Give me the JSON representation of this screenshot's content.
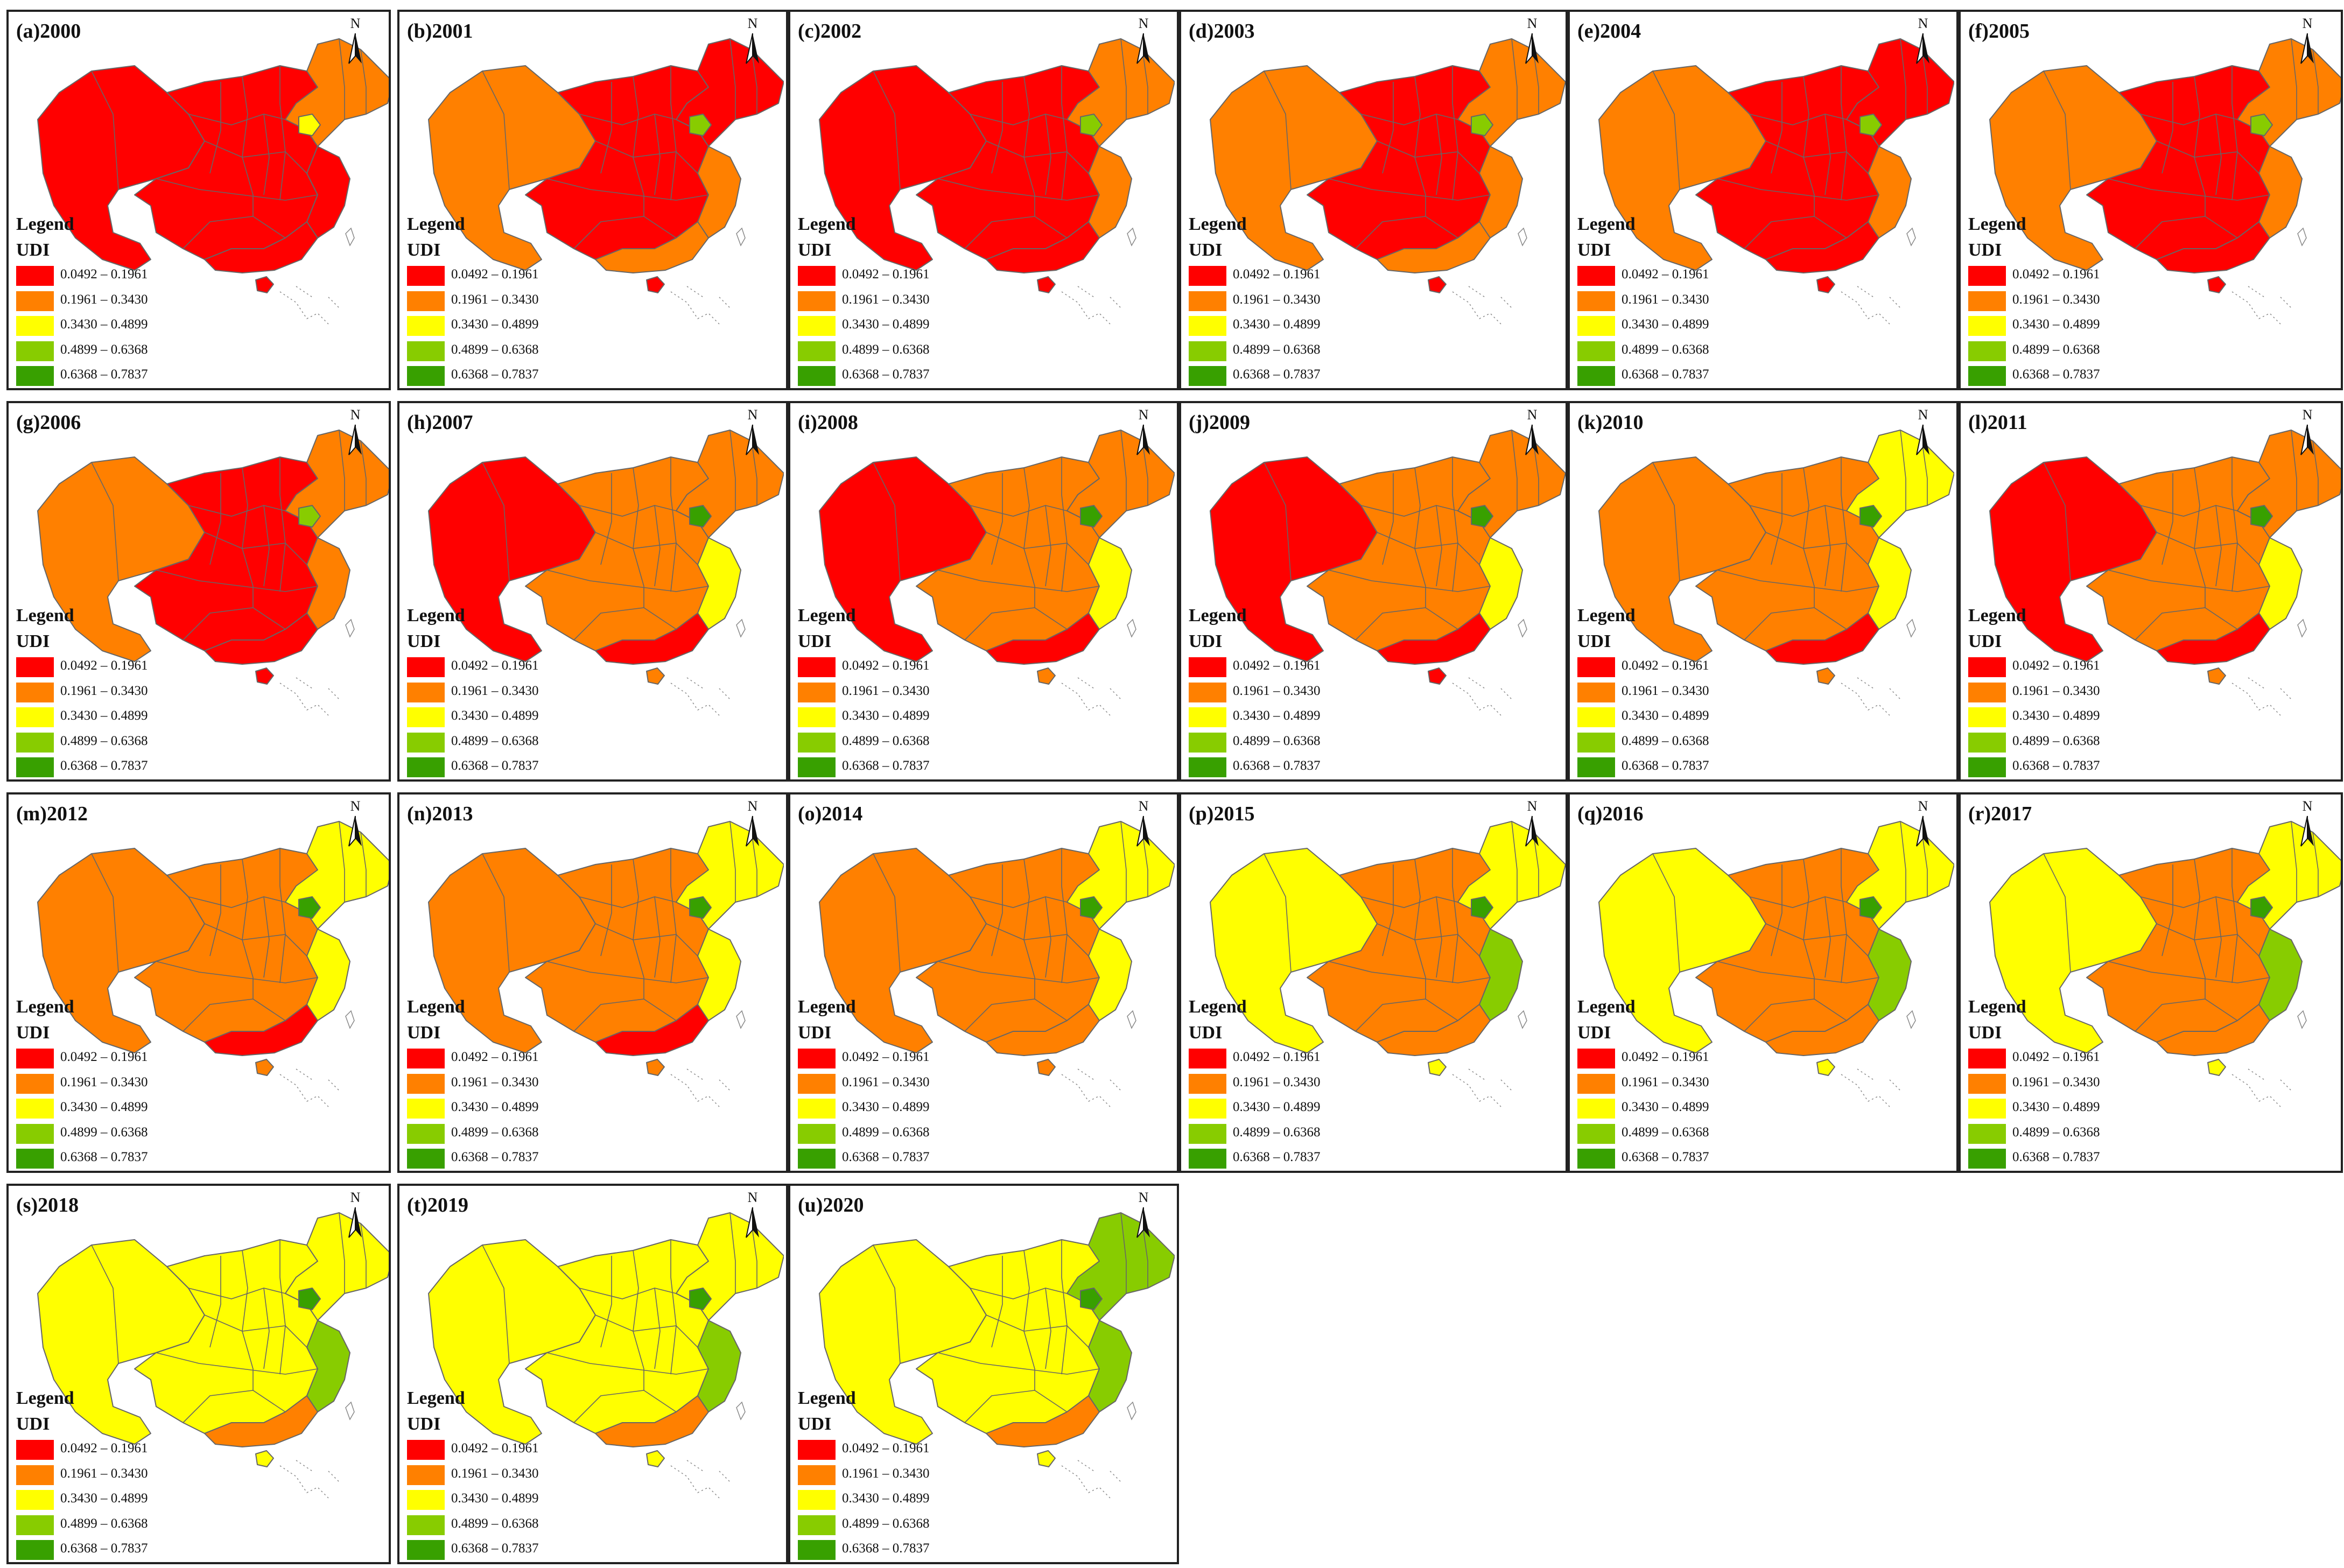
{
  "legend": {
    "heading": "Legend",
    "subheading": "UDI",
    "north_label": "N",
    "classes": [
      {
        "label": "0.0492 – 0.1961",
        "color": "#ff0000"
      },
      {
        "label": "0.1961 – 0.3430",
        "color": "#ff8000"
      },
      {
        "label": "0.3430 – 0.4899",
        "color": "#ffff00"
      },
      {
        "label": "0.4899 – 0.6368",
        "color": "#88cc00"
      },
      {
        "label": "0.6368 – 0.7837",
        "color": "#38a000"
      }
    ]
  },
  "panels": [
    {
      "title": "(a)2000",
      "main": 0,
      "west": 0,
      "south": 0,
      "northeast": 1,
      "beijing": 2,
      "coast": 0,
      "hainan": 0
    },
    {
      "title": "(b)2001",
      "main": 0,
      "west": 1,
      "south": 1,
      "northeast": 0,
      "beijing": 3,
      "coast": 1,
      "hainan": 0
    },
    {
      "title": "(c)2002",
      "main": 0,
      "west": 0,
      "south": 0,
      "northeast": 1,
      "beijing": 3,
      "coast": 1,
      "hainan": 0
    },
    {
      "title": "(d)2003",
      "main": 0,
      "west": 1,
      "south": 1,
      "northeast": 1,
      "beijing": 3,
      "coast": 1,
      "hainan": 0
    },
    {
      "title": "(e)2004",
      "main": 0,
      "west": 1,
      "south": 0,
      "northeast": 0,
      "beijing": 3,
      "coast": 1,
      "hainan": 0
    },
    {
      "title": "(f)2005",
      "main": 0,
      "west": 1,
      "south": 0,
      "northeast": 1,
      "beijing": 3,
      "coast": 1,
      "hainan": 0
    },
    {
      "title": "(g)2006",
      "main": 0,
      "west": 1,
      "south": 0,
      "northeast": 1,
      "beijing": 3,
      "coast": 1,
      "hainan": 0
    },
    {
      "title": "(h)2007",
      "main": 1,
      "west": 0,
      "south": 0,
      "northeast": 1,
      "beijing": 4,
      "coast": 2,
      "hainan": 1
    },
    {
      "title": "(i)2008",
      "main": 1,
      "west": 0,
      "south": 0,
      "northeast": 1,
      "beijing": 4,
      "coast": 2,
      "hainan": 1
    },
    {
      "title": "(j)2009",
      "main": 1,
      "west": 0,
      "south": 0,
      "northeast": 1,
      "beijing": 4,
      "coast": 2,
      "hainan": 0
    },
    {
      "title": "(k)2010",
      "main": 1,
      "west": 1,
      "south": 0,
      "northeast": 2,
      "beijing": 4,
      "coast": 2,
      "hainan": 1
    },
    {
      "title": "(l)2011",
      "main": 1,
      "west": 0,
      "south": 0,
      "northeast": 1,
      "beijing": 4,
      "coast": 2,
      "hainan": 1
    },
    {
      "title": "(m)2012",
      "main": 1,
      "west": 1,
      "south": 0,
      "northeast": 2,
      "beijing": 4,
      "coast": 2,
      "hainan": 1
    },
    {
      "title": "(n)2013",
      "main": 1,
      "west": 1,
      "south": 0,
      "northeast": 2,
      "beijing": 4,
      "coast": 2,
      "hainan": 1
    },
    {
      "title": "(o)2014",
      "main": 1,
      "west": 1,
      "south": 1,
      "northeast": 2,
      "beijing": 4,
      "coast": 2,
      "hainan": 1
    },
    {
      "title": "(p)2015",
      "main": 1,
      "west": 2,
      "south": 1,
      "northeast": 2,
      "beijing": 4,
      "coast": 3,
      "hainan": 2
    },
    {
      "title": "(q)2016",
      "main": 1,
      "west": 2,
      "south": 1,
      "northeast": 2,
      "beijing": 4,
      "coast": 3,
      "hainan": 2
    },
    {
      "title": "(r)2017",
      "main": 1,
      "west": 2,
      "south": 1,
      "northeast": 2,
      "beijing": 4,
      "coast": 3,
      "hainan": 2
    },
    {
      "title": "(s)2018",
      "main": 2,
      "west": 2,
      "south": 1,
      "northeast": 2,
      "beijing": 4,
      "coast": 3,
      "hainan": 2
    },
    {
      "title": "(t)2019",
      "main": 2,
      "west": 2,
      "south": 1,
      "northeast": 2,
      "beijing": 4,
      "coast": 3,
      "hainan": 2
    },
    {
      "title": "(u)2020",
      "main": 2,
      "west": 2,
      "south": 1,
      "northeast": 3,
      "beijing": 4,
      "coast": 3,
      "hainan": 2
    }
  ]
}
